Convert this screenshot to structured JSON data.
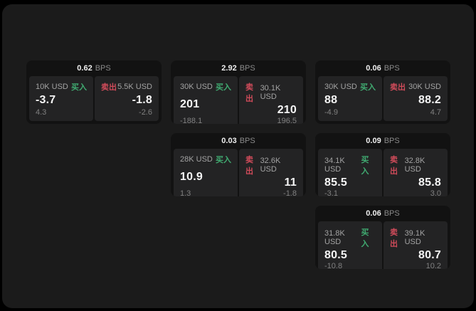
{
  "labels": {
    "buy": "买入",
    "sell": "卖出",
    "unit": "BPS"
  },
  "colors": {
    "page_bg": "#000000",
    "window_bg": "#1b1b1b",
    "card_bg": "#121212",
    "panel_bg": "#232324",
    "text_primary": "#f5f5f5",
    "text_label": "#a3a3a3",
    "text_muted": "#808080",
    "buy_green": "#40ab71",
    "sell_red": "#d04b5a"
  },
  "cards": [
    {
      "bps": "0.62",
      "buy": {
        "amount": "10K USD",
        "value": "-3.7",
        "delta": "4.3"
      },
      "sell": {
        "amount": "5.5K USD",
        "value": "-1.8",
        "delta": "-2.6"
      }
    },
    {
      "bps": "2.92",
      "buy": {
        "amount": "30K USD",
        "value": "201",
        "delta": "-188.1"
      },
      "sell": {
        "amount": "30.1K USD",
        "value": "210",
        "delta": "196.5"
      }
    },
    {
      "bps": "0.06",
      "buy": {
        "amount": "30K USD",
        "value": "88",
        "delta": "-4.9"
      },
      "sell": {
        "amount": "30K USD",
        "value": "88.2",
        "delta": "4.7"
      }
    },
    {
      "bps": "0.03",
      "buy": {
        "amount": "28K USD",
        "value": "10.9",
        "delta": "1.3"
      },
      "sell": {
        "amount": "32.6K USD",
        "value": "11",
        "delta": "-1.8"
      }
    },
    {
      "bps": "0.09",
      "buy": {
        "amount": "34.1K USD",
        "value": "85.5",
        "delta": "-3.1"
      },
      "sell": {
        "amount": "32.8K USD",
        "value": "85.8",
        "delta": "3.0"
      }
    },
    {
      "bps": "0.06",
      "buy": {
        "amount": "31.8K USD",
        "value": "80.5",
        "delta": "-10.8"
      },
      "sell": {
        "amount": "39.1K USD",
        "value": "80.7",
        "delta": "10.2"
      }
    }
  ]
}
